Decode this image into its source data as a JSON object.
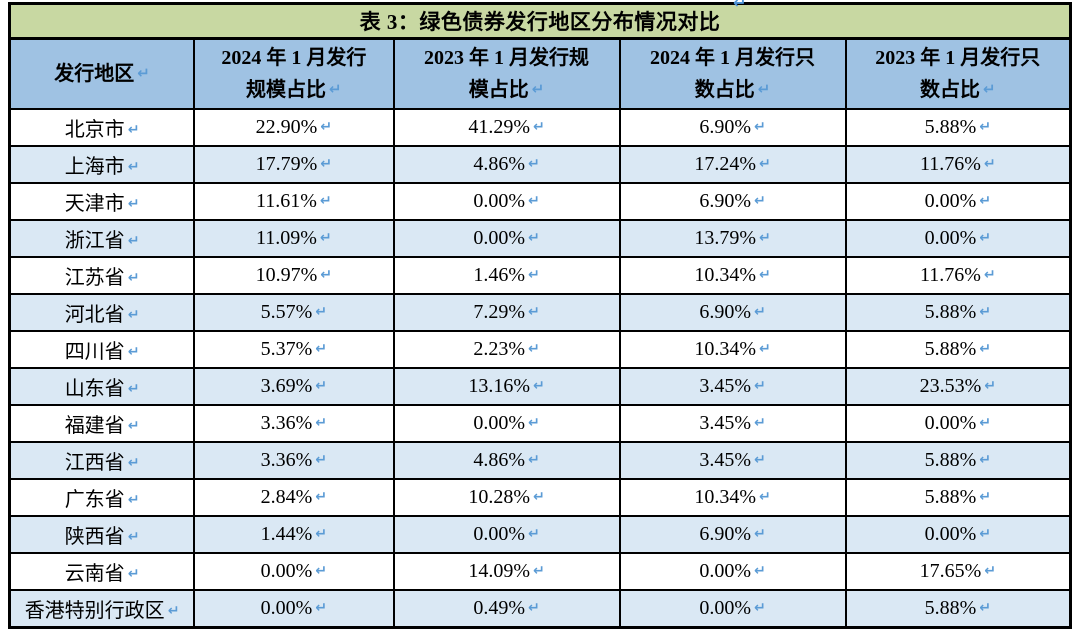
{
  "page": {
    "clipped_return_mark": "↵"
  },
  "table": {
    "title": "表 3：绿色债券发行地区分布情况对比",
    "return_mark": "↵",
    "columns": [
      {
        "label": "发行地区"
      },
      {
        "label": "2024 年 1 月发行\n规模占比"
      },
      {
        "label": "2023 年 1 月发行规\n模占比"
      },
      {
        "label": "2024 年 1 月发行只\n数占比"
      },
      {
        "label": "2023 年 1 月发行只\n数占比"
      }
    ],
    "rows": [
      {
        "region": "北京市",
        "values": [
          "22.90%",
          "41.29%",
          "6.90%",
          "5.88%"
        ]
      },
      {
        "region": "上海市",
        "values": [
          "17.79%",
          "4.86%",
          "17.24%",
          "11.76%"
        ]
      },
      {
        "region": "天津市",
        "values": [
          "11.61%",
          "0.00%",
          "6.90%",
          "0.00%"
        ]
      },
      {
        "region": "浙江省",
        "values": [
          "11.09%",
          "0.00%",
          "13.79%",
          "0.00%"
        ]
      },
      {
        "region": "江苏省",
        "values": [
          "10.97%",
          "1.46%",
          "10.34%",
          "11.76%"
        ]
      },
      {
        "region": "河北省",
        "values": [
          "5.57%",
          "7.29%",
          "6.90%",
          "5.88%"
        ]
      },
      {
        "region": "四川省",
        "values": [
          "5.37%",
          "2.23%",
          "10.34%",
          "5.88%"
        ]
      },
      {
        "region": "山东省",
        "values": [
          "3.69%",
          "13.16%",
          "3.45%",
          "23.53%"
        ]
      },
      {
        "region": "福建省",
        "values": [
          "3.36%",
          "0.00%",
          "3.45%",
          "0.00%"
        ]
      },
      {
        "region": "江西省",
        "values": [
          "3.36%",
          "4.86%",
          "3.45%",
          "5.88%"
        ]
      },
      {
        "region": "广东省",
        "values": [
          "2.84%",
          "10.28%",
          "10.34%",
          "5.88%"
        ]
      },
      {
        "region": "陕西省",
        "values": [
          "1.44%",
          "0.00%",
          "6.90%",
          "0.00%"
        ]
      },
      {
        "region": "云南省",
        "values": [
          "0.00%",
          "14.09%",
          "0.00%",
          "17.65%"
        ]
      },
      {
        "region": "香港特别行政区",
        "values": [
          "0.00%",
          "0.49%",
          "0.00%",
          "5.88%"
        ]
      }
    ]
  },
  "colors": {
    "title_bg": "#c8d8a2",
    "header_bg": "#9fc2e3",
    "row_alt_bg": "#dae8f4",
    "border": "#000000",
    "return_mark": "#5b9bd5"
  }
}
